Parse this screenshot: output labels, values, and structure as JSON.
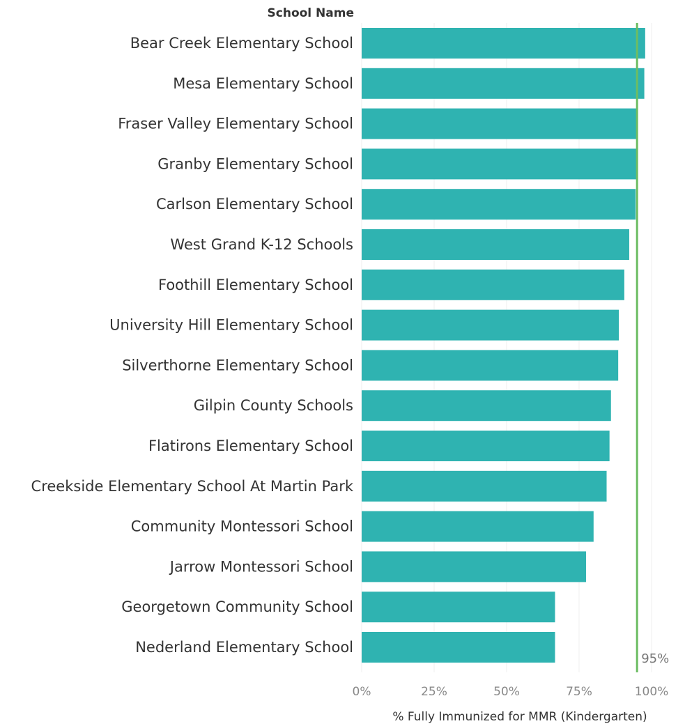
{
  "chart_data": {
    "type": "bar",
    "orientation": "horizontal",
    "row_header": "School Name",
    "xlabel": "% Fully Immunized for MMR (Kindergarten)",
    "categories": [
      "Bear Creek Elementary School",
      "Mesa Elementary School",
      "Fraser Valley Elementary School",
      "Granby Elementary School",
      "Carlson Elementary School",
      "West Grand K-12 Schools",
      "Foothill Elementary School",
      "University Hill Elementary School",
      "Silverthorne Elementary School",
      "Gilpin County Schools",
      "Flatirons Elementary School",
      "Creekside Elementary School At Martin Park",
      "Community Montessori School",
      "Jarrow Montessori School",
      "Georgetown Community School",
      "Nederland Elementary School"
    ],
    "values": [
      97.8,
      97.5,
      95.0,
      95.0,
      94.5,
      92.3,
      90.6,
      88.7,
      88.5,
      86.0,
      85.5,
      84.5,
      80.0,
      77.4,
      66.7,
      66.7
    ],
    "xlim": [
      0,
      105
    ],
    "xticks": [
      0,
      25,
      50,
      75,
      100
    ],
    "xtick_labels": [
      "0%",
      "25%",
      "50%",
      "75%",
      "100%"
    ],
    "reference_line": {
      "value": 95,
      "label": "95%"
    },
    "grid": true,
    "bar_color": "#2fb3b1",
    "reference_color": "#6dbd63",
    "grid_color": "#efefef"
  }
}
